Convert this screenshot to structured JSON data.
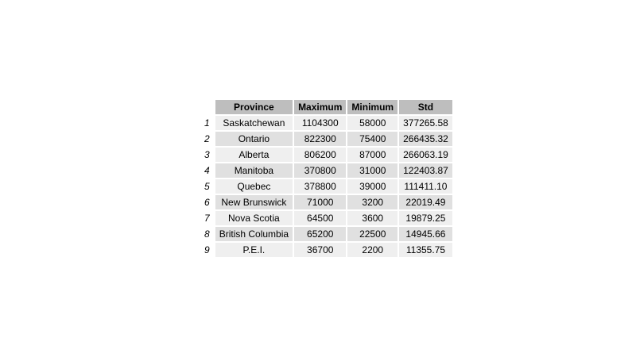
{
  "chart_data": {
    "type": "table",
    "columns": [
      "Province",
      "Maximum",
      "Minimum",
      "Std"
    ],
    "rows": [
      {
        "index": "1",
        "cells": [
          "Saskatchewan",
          "1104300",
          "58000",
          "377265.58"
        ]
      },
      {
        "index": "2",
        "cells": [
          "Ontario",
          "822300",
          "75400",
          "266435.32"
        ]
      },
      {
        "index": "3",
        "cells": [
          "Alberta",
          "806200",
          "87000",
          "266063.19"
        ]
      },
      {
        "index": "4",
        "cells": [
          "Manitoba",
          "370800",
          "31000",
          "122403.87"
        ]
      },
      {
        "index": "5",
        "cells": [
          "Quebec",
          "378800",
          "39000",
          "111411.10"
        ]
      },
      {
        "index": "6",
        "cells": [
          "New Brunswick",
          "71000",
          "3200",
          "22019.49"
        ]
      },
      {
        "index": "7",
        "cells": [
          "Nova Scotia",
          "64500",
          "3600",
          "19879.25"
        ]
      },
      {
        "index": "8",
        "cells": [
          "British Columbia",
          "65200",
          "22500",
          "14945.66"
        ]
      },
      {
        "index": "9",
        "cells": [
          "P.E.I.",
          "36700",
          "2200",
          "11355.75"
        ]
      }
    ]
  },
  "colors": {
    "header_bg": "#bebebe",
    "row_light": "#efefef",
    "row_dark": "#e0e0e0"
  }
}
